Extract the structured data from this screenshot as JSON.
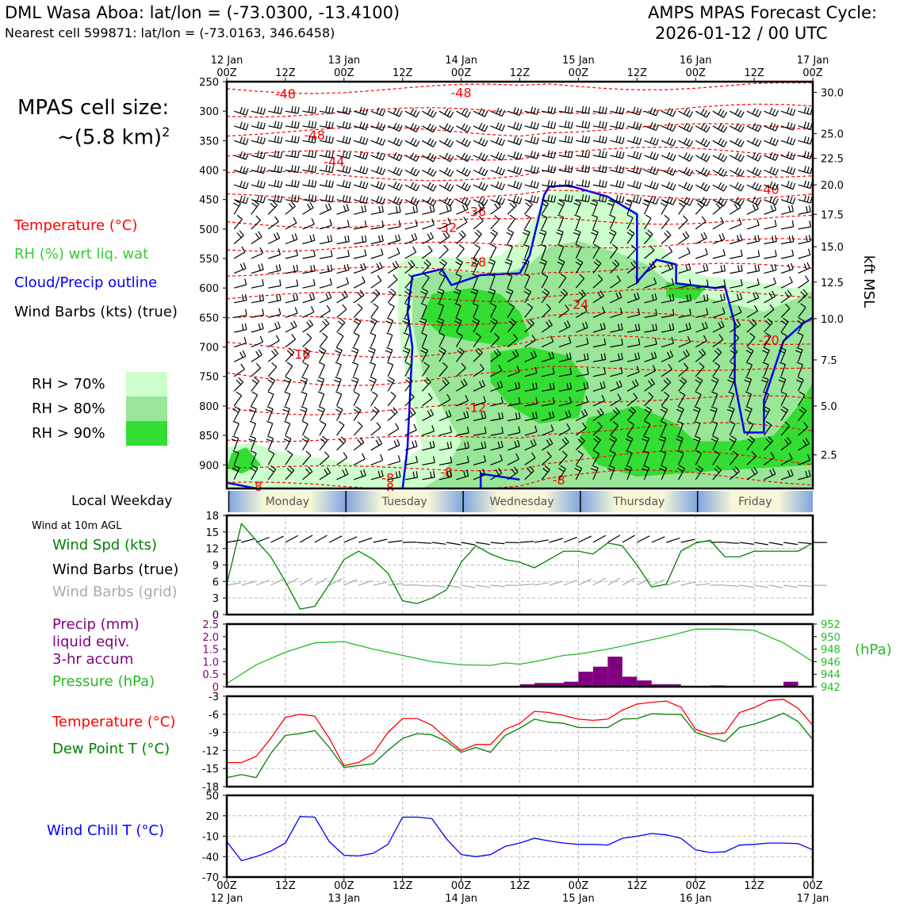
{
  "header": {
    "station": "DML Wasa Aboa: lat/lon = (-73.0300, -13.4100)",
    "cell": "Nearest cell 599871: lat/lon = (-73.0163, 346.6458)",
    "cycle_title": "AMPS MPAS Forecast Cycle:",
    "cycle_time": "2026-01-12 / 00 UTC"
  },
  "cell_size": {
    "label": "MPAS cell size:",
    "value": "~(5.8 km)",
    "exponent": "2"
  },
  "legend": {
    "temperature": "Temperature (°C)",
    "rh": "RH (%) wrt liq. wat",
    "cloud": "Cloud/Precip outline",
    "barbs": "Wind Barbs (kts) (true)",
    "rh70": "RH > 70%",
    "rh80": "RH > 80%",
    "rh90": "RH > 90%"
  },
  "colors": {
    "temp": "#ff0000",
    "rh_label": "#33cc33",
    "cloud": "#0000ee",
    "rh70": "#ccffcc",
    "rh80": "#99e699",
    "rh90": "#33dd33",
    "wind_spd": "#008000",
    "precip": "#800080",
    "pressure": "#22bb22",
    "windchill": "#0000ff",
    "dewpoint": "#008000",
    "grid_barb": "#aaaaaa"
  },
  "weekday": {
    "label": "Local Weekday",
    "days": [
      "Monday",
      "Tuesday",
      "Wednesday",
      "Thursday",
      "Friday"
    ]
  },
  "panels": {
    "wind10": {
      "title": "Wind at 10m AGL",
      "spd": "Wind Spd (kts)",
      "barbs": "Wind Barbs (true)",
      "grid": "Wind Barbs (grid)"
    },
    "precip": {
      "label1": "Precip (mm)",
      "label2": "liquid eqiv.",
      "label3": "3-hr accum",
      "pressure": "Pressure (hPa)",
      "unit": "(hPa)"
    },
    "temp": {
      "temp": "Temperature (°C)",
      "dew": "Dew Point T (°C)"
    },
    "chill": {
      "label": "Wind Chill T (°C)"
    }
  },
  "time_axis": {
    "top_dates": [
      "12 Jan",
      "",
      "13 Jan",
      "",
      "14 Jan",
      "",
      "15 Jan",
      "",
      "16 Jan",
      "",
      "17 Jan"
    ],
    "top_hours": [
      "00Z",
      "12Z",
      "00Z",
      "12Z",
      "00Z",
      "12Z",
      "00Z",
      "12Z",
      "00Z",
      "12Z",
      "00Z"
    ],
    "bottom_hours": [
      "00Z",
      "12Z",
      "00Z",
      "12Z",
      "00Z",
      "12Z",
      "00Z",
      "12Z",
      "00Z",
      "12Z",
      "00Z"
    ],
    "bottom_dates": [
      "12 Jan",
      "",
      "13 Jan",
      "",
      "14 Jan",
      "",
      "15 Jan",
      "",
      "16 Jan",
      "",
      "17 Jan"
    ]
  },
  "chart_data": [
    {
      "type": "heatmap",
      "name": "cross-section",
      "x_hours": [
        0,
        120
      ],
      "pressure_ticks": [
        250,
        300,
        350,
        400,
        450,
        500,
        550,
        600,
        650,
        700,
        750,
        800,
        850,
        900
      ],
      "ylim": [
        250,
        940
      ],
      "kft_ticks": [
        {
          "label": "30.0",
          "p": 268
        },
        {
          "label": "25.0",
          "p": 338
        },
        {
          "label": "22.5",
          "p": 380
        },
        {
          "label": "20.0",
          "p": 425
        },
        {
          "label": "17.5",
          "p": 475
        },
        {
          "label": "15.0",
          "p": 530
        },
        {
          "label": "12.5",
          "p": 590
        },
        {
          "label": "10.0",
          "p": 652
        },
        {
          "label": "7.5",
          "p": 722
        },
        {
          "label": "5.0",
          "p": 800
        },
        {
          "label": "2.5",
          "p": 883
        }
      ],
      "ylabel_right": "kft MSL",
      "temp_labels": [
        {
          "text": "-48",
          "h": 12,
          "p": 270
        },
        {
          "text": "-48",
          "h": 48,
          "p": 268
        },
        {
          "text": "-48",
          "h": 18,
          "p": 340
        },
        {
          "text": "-44",
          "h": 22,
          "p": 385
        },
        {
          "text": "-40",
          "h": 111,
          "p": 432
        },
        {
          "text": "-36",
          "h": 51,
          "p": 470
        },
        {
          "text": "-32",
          "h": 45,
          "p": 497
        },
        {
          "text": "-28",
          "h": 51,
          "p": 555
        },
        {
          "text": "-24",
          "h": 72,
          "p": 627
        },
        {
          "text": "-20",
          "h": 111,
          "p": 688
        },
        {
          "text": "-16",
          "h": 15,
          "p": 712
        },
        {
          "text": "-12",
          "h": 51,
          "p": 802
        },
        {
          "text": "-8",
          "h": 45,
          "p": 912
        },
        {
          "text": "-8",
          "h": 33,
          "p": 922
        },
        {
          "text": "-8",
          "h": 68,
          "p": 925
        },
        {
          "text": "-8",
          "h": 6,
          "p": 936
        },
        {
          "text": "-8",
          "h": 33,
          "p": 938
        }
      ]
    },
    {
      "type": "line",
      "name": "wind10",
      "x": [
        0,
        3,
        6,
        9,
        12,
        15,
        18,
        21,
        24,
        27,
        30,
        33,
        36,
        39,
        42,
        45,
        48,
        51,
        54,
        57,
        60,
        63,
        66,
        69,
        72,
        75,
        78,
        81,
        84,
        87,
        90,
        93,
        96,
        99,
        102,
        105,
        108,
        111,
        114,
        117,
        120
      ],
      "series": [
        {
          "name": "Wind Spd (kts)",
          "values": [
            5.5,
            16.5,
            13.5,
            10.5,
            6,
            1,
            1.5,
            5.5,
            10,
            11.5,
            10,
            7.5,
            2.5,
            2,
            3,
            4.5,
            9.5,
            12.5,
            11,
            10,
            9.5,
            8.5,
            10,
            11.5,
            11.5,
            11,
            13,
            12.5,
            9,
            5,
            5.5,
            11.5,
            13,
            13.5,
            10.5,
            10.5,
            11.5,
            11.5,
            11.5,
            11.5,
            13
          ]
        }
      ],
      "yticks": [
        0,
        3,
        6,
        9,
        12,
        15,
        18
      ],
      "ylim": [
        0,
        18
      ]
    },
    {
      "type": "bar",
      "name": "precip-pressure",
      "precip": {
        "x": [
          60,
          63,
          66,
          69,
          72,
          75,
          78,
          81,
          84,
          87,
          90,
          99,
          114
        ],
        "values": [
          0.1,
          0.15,
          0.15,
          0.2,
          0.6,
          0.8,
          1.2,
          0.4,
          0.25,
          0.1,
          0.1,
          0.05,
          0.2
        ]
      },
      "pressure": {
        "x": [
          0,
          6,
          12,
          18,
          24,
          30,
          36,
          42,
          48,
          54,
          57,
          60,
          63,
          66,
          69,
          72,
          78,
          84,
          90,
          96,
          102,
          108,
          114,
          120
        ],
        "values": [
          942.5,
          945.5,
          947.5,
          949,
          949.2,
          948,
          947,
          946,
          945.5,
          945.4,
          945.8,
          945.6,
          946,
          946.5,
          947,
          947.2,
          948,
          949,
          950,
          951.2,
          951.2,
          951,
          949,
          946
        ]
      },
      "precip_ticks": [
        "0",
        "0.5",
        "1.0",
        "1.5",
        "2.0",
        "2.5"
      ],
      "precip_ylim": [
        0,
        2.5
      ],
      "pressure_ticks": [
        "942",
        "944",
        "946",
        "948",
        "950",
        "952"
      ],
      "pressure_ylim": [
        942,
        952
      ]
    },
    {
      "type": "line",
      "name": "temperature",
      "x": [
        0,
        3,
        6,
        9,
        12,
        15,
        18,
        21,
        24,
        27,
        30,
        33,
        36,
        39,
        42,
        45,
        48,
        51,
        54,
        57,
        60,
        63,
        66,
        69,
        72,
        75,
        78,
        81,
        84,
        87,
        90,
        93,
        96,
        99,
        102,
        105,
        108,
        111,
        114,
        117,
        120
      ],
      "series": [
        {
          "name": "Temperature (°C)",
          "values": [
            -14,
            -14,
            -13,
            -10,
            -6.5,
            -6,
            -6.3,
            -10,
            -14.5,
            -14,
            -12.5,
            -9,
            -6.7,
            -6.7,
            -7.8,
            -10,
            -12,
            -11,
            -11,
            -8.5,
            -7.5,
            -5.5,
            -5.7,
            -6.2,
            -6.8,
            -7,
            -6.8,
            -5.3,
            -4.3,
            -4,
            -3.8,
            -4.8,
            -8.5,
            -9.3,
            -9.1,
            -5.7,
            -4.9,
            -3.7,
            -3.5,
            -5,
            -7.8
          ]
        },
        {
          "name": "Dew Point T (°C)",
          "values": [
            -16.5,
            -16,
            -16.5,
            -12.5,
            -9.5,
            -9.2,
            -8.7,
            -11.5,
            -14.8,
            -14.5,
            -14.2,
            -12,
            -10,
            -9.2,
            -9.4,
            -10.5,
            -12.3,
            -11.5,
            -12.3,
            -9.5,
            -8.3,
            -6.8,
            -7.3,
            -7.5,
            -8.2,
            -8.2,
            -8.2,
            -6.8,
            -6.7,
            -5.9,
            -6,
            -6,
            -9,
            -9.8,
            -10.5,
            -8.2,
            -7.6,
            -6.8,
            -5.8,
            -7.2,
            -10.2
          ]
        }
      ],
      "yticks": [
        -18,
        -15,
        -12,
        -9,
        -6,
        -3
      ],
      "ylim": [
        -18,
        -3
      ]
    },
    {
      "type": "line",
      "name": "windchill",
      "x": [
        0,
        3,
        6,
        9,
        12,
        15,
        18,
        21,
        24,
        27,
        30,
        33,
        36,
        39,
        42,
        45,
        48,
        51,
        54,
        57,
        60,
        63,
        66,
        69,
        72,
        75,
        78,
        81,
        84,
        87,
        90,
        93,
        96,
        99,
        102,
        105,
        108,
        111,
        114,
        117,
        120
      ],
      "series": [
        {
          "name": "Wind Chill T (°C)",
          "values": [
            -18,
            -46,
            -40,
            -32,
            -20,
            19,
            18,
            -18,
            -38,
            -39,
            -35,
            -22,
            18,
            18,
            16,
            -14,
            -37,
            -40,
            -37,
            -25,
            -20,
            -13,
            -17,
            -20,
            -22,
            -22,
            -23,
            -13,
            -10,
            -6,
            -8,
            -13,
            -30,
            -34,
            -33,
            -23,
            -22,
            -20,
            -20,
            -21,
            -30
          ]
        }
      ],
      "yticks": [
        -70,
        -40,
        -10,
        20,
        50
      ],
      "ylim": [
        -70,
        50
      ]
    }
  ]
}
